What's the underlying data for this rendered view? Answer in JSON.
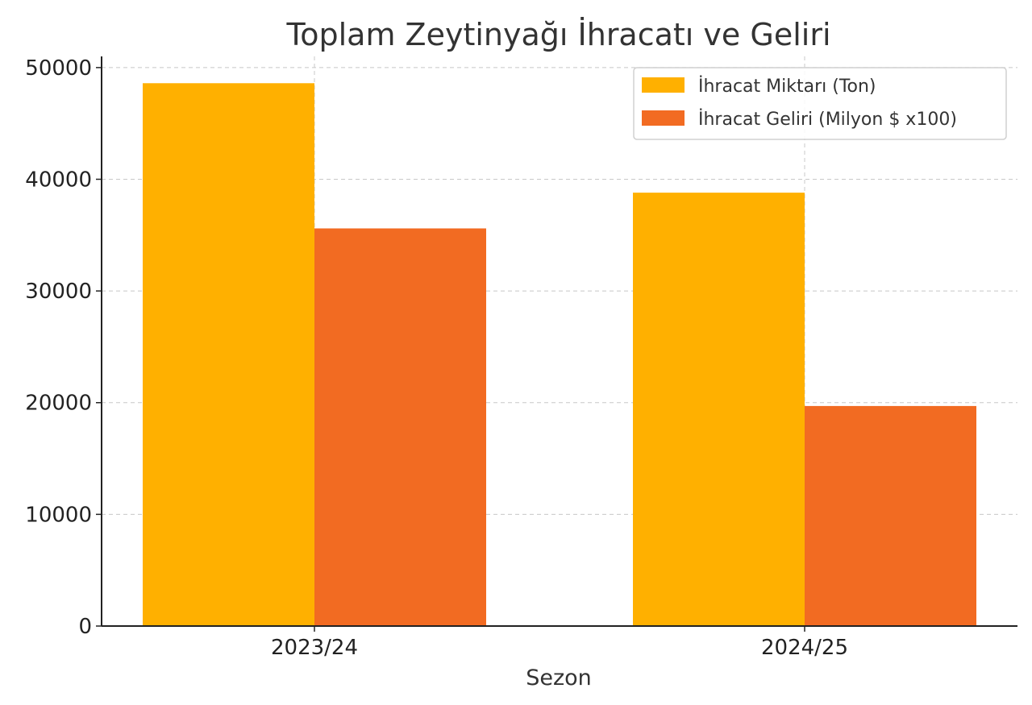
{
  "chart_data": {
    "type": "bar",
    "title": "Toplam Zeytinyağı İhracatı ve Geliri",
    "xlabel": "Sezon",
    "ylabel": "",
    "categories": [
      "2023/24",
      "2024/25"
    ],
    "series": [
      {
        "name": "İhracat Miktarı (Ton)",
        "color": "#FFB000",
        "values": [
          48600,
          38800
        ]
      },
      {
        "name": "İhracat Geliri (Milyon $ x100)",
        "color": "#F26B22",
        "values": [
          35600,
          19700
        ]
      }
    ],
    "ylim": [
      0,
      51000
    ],
    "yticks": [
      0,
      10000,
      20000,
      30000,
      40000,
      50000
    ],
    "ytick_labels": [
      "0",
      "10000",
      "20000",
      "30000",
      "40000",
      "50000"
    ],
    "grid": true,
    "legend_position": "top-right"
  }
}
